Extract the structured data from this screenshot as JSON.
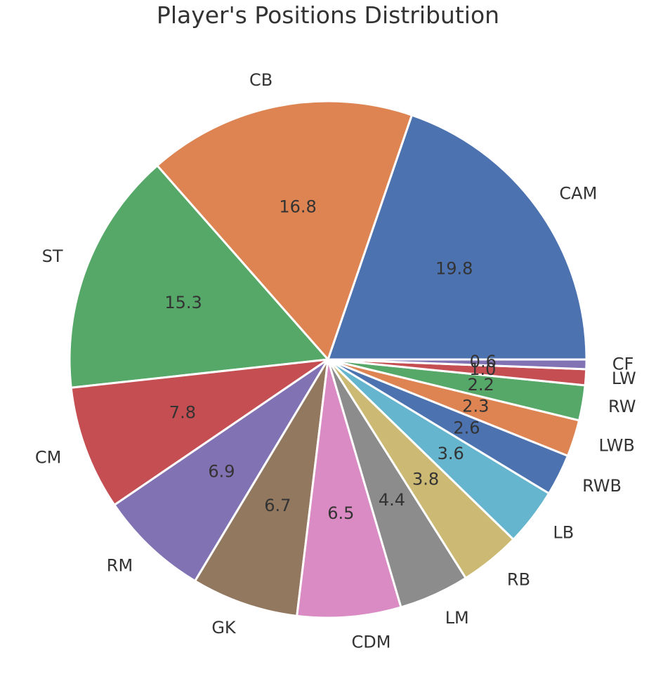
{
  "chart_data": {
    "type": "pie",
    "title": "Player's Positions Distribution",
    "categories": [
      "CAM",
      "CB",
      "ST",
      "CM",
      "RM",
      "GK",
      "CDM",
      "LM",
      "RB",
      "LB",
      "RWB",
      "LWB",
      "RW",
      "LW",
      "CF"
    ],
    "values": [
      19.8,
      16.8,
      15.3,
      7.8,
      6.9,
      6.7,
      6.5,
      4.4,
      3.8,
      3.6,
      2.6,
      2.3,
      2.2,
      1.0,
      0.6
    ],
    "value_labels": [
      "19.8",
      "16.8",
      "15.3",
      "7.8",
      "6.9",
      "6.7",
      "6.5",
      "4.4",
      "3.8",
      "3.6",
      "2.6",
      "2.3",
      "2.2",
      "1.0",
      "0.6"
    ],
    "colors": [
      "#4c72b0",
      "#dd8452",
      "#55a868",
      "#c44e52",
      "#8172b3",
      "#937860",
      "#da8bc3",
      "#8c8c8c",
      "#ccb974",
      "#64b5cd",
      "#4c72b0",
      "#dd8452",
      "#55a868",
      "#c44e52",
      "#8172b3"
    ],
    "start_angle_deg": 0,
    "direction": "counterclockwise"
  }
}
